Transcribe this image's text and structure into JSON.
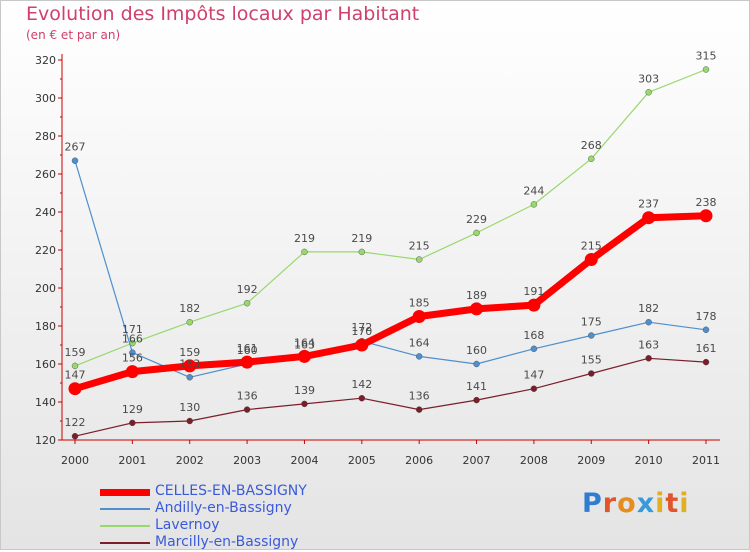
{
  "title": "Evolution des Impôts locaux par Habitant",
  "subtitle": "(en € et par an)",
  "logo": {
    "text": "Proxiti",
    "letters": [
      "P",
      "r",
      "o",
      "x",
      "i",
      "t",
      "i"
    ],
    "colors": [
      "#2f7dd1",
      "#e1552a",
      "#e58d21",
      "#3a9ad9",
      "#e0b020",
      "#e1552a",
      "#e0b020"
    ]
  },
  "colors": {
    "title": "#d0406c",
    "axis": "#cc0000",
    "legend_text": "#3a5bd9"
  },
  "chart_data": {
    "type": "line",
    "title": "Evolution des Impôts locaux par Habitant",
    "ylabel": "(en € et par an)",
    "xlabel": "",
    "x": [
      "2000",
      "2001",
      "2002",
      "2003",
      "2004",
      "2005",
      "2006",
      "2007",
      "2008",
      "2009",
      "2010",
      "2011"
    ],
    "yticks": [
      "120",
      "140",
      "160",
      "180",
      "200",
      "220",
      "240",
      "260",
      "280",
      "300",
      "320"
    ],
    "ylim": [
      120,
      320
    ],
    "grid": false,
    "legend_position": "bottom-left",
    "series": [
      {
        "name": "Marcilly-en-Bassigny",
        "color": "#7a1e2a",
        "width": 1.2,
        "marker": 3,
        "values": [
          122,
          129,
          130,
          136,
          139,
          142,
          136,
          141,
          147,
          155,
          163,
          161
        ],
        "labels": [
          "122",
          "129",
          "130",
          "136",
          "139",
          "142",
          "136",
          "141",
          "147",
          "155",
          "163",
          "161"
        ]
      },
      {
        "name": "Lavernoy",
        "color": "#98d86c",
        "width": 1.2,
        "marker": 3,
        "values": [
          159,
          171,
          182,
          192,
          219,
          219,
          215,
          229,
          244,
          268,
          303,
          315
        ],
        "labels": [
          "159",
          "171",
          "182",
          "192",
          "219",
          "219",
          "215",
          "229",
          "244",
          "268",
          "303",
          "315"
        ]
      },
      {
        "name": "Andilly-en-Bassigny",
        "color": "#4f8fce",
        "width": 1.2,
        "marker": 3,
        "values": [
          267,
          166,
          153,
          160,
          163,
          172,
          164,
          160,
          168,
          175,
          182,
          178
        ],
        "labels": [
          "267",
          "166",
          "153",
          "160",
          "163",
          "172",
          "164",
          "160",
          "168",
          "175",
          "182",
          "178"
        ]
      },
      {
        "name": "CELLES-EN-BASSIGNY",
        "color": "#ff0000",
        "width": 7,
        "marker": 6.5,
        "values": [
          147,
          156,
          159,
          161,
          164,
          170,
          185,
          189,
          191,
          215,
          237,
          238
        ],
        "labels": [
          "147",
          "156",
          "159",
          "161",
          "164",
          "170",
          "185",
          "189",
          "191",
          "215",
          "237",
          "238"
        ]
      }
    ],
    "legend": [
      {
        "name": "CELLES-EN-BASSIGNY",
        "color": "#ff0000",
        "width": 7
      },
      {
        "name": "Andilly-en-Bassigny",
        "color": "#4f8fce",
        "width": 2
      },
      {
        "name": "Lavernoy",
        "color": "#98d86c",
        "width": 2
      },
      {
        "name": "Marcilly-en-Bassigny",
        "color": "#7a1e2a",
        "width": 2
      }
    ]
  }
}
